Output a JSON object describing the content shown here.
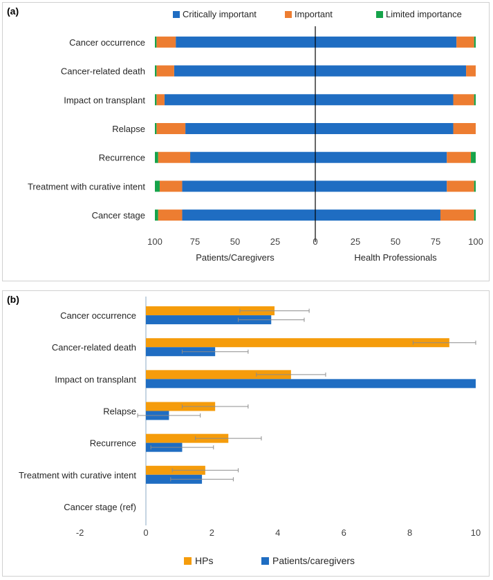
{
  "chart_data": [
    {
      "panel": "(a)",
      "type": "bar",
      "orientation": "horizontal-diverging-stacked",
      "categories": [
        "Cancer occurrence",
        "Cancer-related death",
        "Impact on transplant",
        "Relapse",
        "Recurrence",
        "Treatment with curative intent",
        "Cancer stage"
      ],
      "legend": [
        "Critically important",
        "Important",
        "Limited importance"
      ],
      "colors": {
        "critical": "#1f6dc2",
        "important": "#ed7d31",
        "limited": "#16a34a"
      },
      "left_group": "Patients/Caregivers",
      "right_group": "Health Professionals",
      "xticks_left": [
        "100",
        "75",
        "50",
        "25",
        "0"
      ],
      "xticks_right": [
        "25",
        "50",
        "75",
        "100"
      ],
      "xlim": [
        0,
        100
      ],
      "left": [
        {
          "critical": 87,
          "important": 12,
          "limited": 1
        },
        {
          "critical": 88,
          "important": 11,
          "limited": 1
        },
        {
          "critical": 94,
          "important": 5,
          "limited": 1
        },
        {
          "critical": 81,
          "important": 18,
          "limited": 1
        },
        {
          "critical": 78,
          "important": 20,
          "limited": 2
        },
        {
          "critical": 83,
          "important": 14,
          "limited": 3
        },
        {
          "critical": 83,
          "important": 15,
          "limited": 2
        }
      ],
      "right": [
        {
          "critical": 88,
          "important": 11,
          "limited": 1
        },
        {
          "critical": 94,
          "important": 6,
          "limited": 0
        },
        {
          "critical": 86,
          "important": 13,
          "limited": 1
        },
        {
          "critical": 86,
          "important": 14,
          "limited": 0
        },
        {
          "critical": 82,
          "important": 15,
          "limited": 3
        },
        {
          "critical": 82,
          "important": 17,
          "limited": 1
        },
        {
          "critical": 78,
          "important": 21,
          "limited": 1
        }
      ]
    },
    {
      "panel": "(b)",
      "type": "bar",
      "orientation": "horizontal-grouped",
      "categories": [
        "Cancer occurrence",
        "Cancer-related death",
        "Impact on transplant",
        "Relapse",
        "Recurrence",
        "Treatment with curative intent",
        "Cancer stage (ref)"
      ],
      "series": [
        {
          "name": "HPs",
          "color": "#f59c0b",
          "values": [
            3.9,
            9.2,
            4.4,
            2.1,
            2.5,
            1.8,
            0
          ],
          "errors": [
            1.05,
            1.1,
            1.05,
            1.0,
            1.0,
            1.0,
            0
          ]
        },
        {
          "name": "Patients/caregivers",
          "color": "#1f6dc2",
          "values": [
            3.8,
            2.1,
            10,
            0.7,
            1.1,
            1.7,
            0
          ],
          "errors": [
            1.0,
            1.0,
            0,
            0.95,
            0.95,
            0.95,
            0
          ]
        }
      ],
      "xticks": [
        "-2",
        "0",
        "2",
        "4",
        "6",
        "8",
        "10"
      ],
      "xlim": [
        -2,
        10
      ]
    }
  ]
}
